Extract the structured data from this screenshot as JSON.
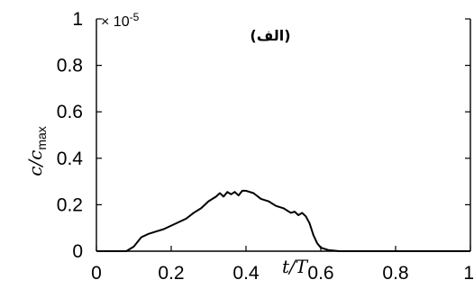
{
  "chart_data": {
    "type": "line",
    "title": "",
    "panel_label": "(الف)",
    "xlabel": {
      "main": "t/T",
      "base": "t/T"
    },
    "ylabel": {
      "main": "c/c",
      "subscript": "max"
    },
    "multiplier": {
      "base": "× 10",
      "exponent": "-5"
    },
    "xlim": [
      0,
      1
    ],
    "ylim": [
      0,
      1
    ],
    "x_ticks": [
      "0",
      "0.2",
      "0.4",
      "0.6",
      "0.8",
      "1"
    ],
    "x_tick_values": [
      0,
      0.2,
      0.4,
      0.6,
      0.8,
      1
    ],
    "y_ticks": [
      "0",
      "0.2",
      "0.4",
      "0.6",
      "0.8",
      "1"
    ],
    "y_tick_values": [
      0,
      0.2,
      0.4,
      0.6,
      0.8,
      1
    ],
    "grid": false,
    "series": [
      {
        "color": "#000000",
        "x": [
          0.0,
          0.08,
          0.1,
          0.12,
          0.14,
          0.16,
          0.18,
          0.2,
          0.22,
          0.24,
          0.26,
          0.28,
          0.3,
          0.32,
          0.33,
          0.34,
          0.35,
          0.36,
          0.37,
          0.38,
          0.39,
          0.4,
          0.42,
          0.44,
          0.46,
          0.48,
          0.5,
          0.52,
          0.53,
          0.54,
          0.55,
          0.56,
          0.57,
          0.58,
          0.59,
          0.6,
          0.62,
          0.65,
          1.0
        ],
        "y": [
          0.0,
          0.0,
          0.02,
          0.06,
          0.075,
          0.085,
          0.095,
          0.11,
          0.125,
          0.14,
          0.165,
          0.185,
          0.215,
          0.235,
          0.25,
          0.235,
          0.255,
          0.245,
          0.255,
          0.24,
          0.26,
          0.26,
          0.25,
          0.225,
          0.215,
          0.195,
          0.185,
          0.165,
          0.17,
          0.155,
          0.165,
          0.15,
          0.12,
          0.07,
          0.035,
          0.015,
          0.005,
          0.0,
          0.0
        ]
      }
    ]
  }
}
